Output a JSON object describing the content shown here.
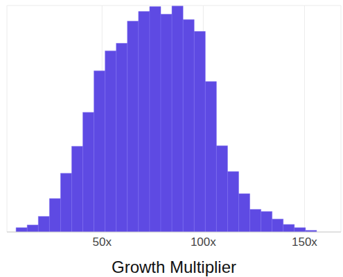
{
  "chart_data": {
    "type": "histogram",
    "x_label": "Growth Multiplier",
    "bins": [
      7.5,
      13,
      18.5,
      24,
      29.5,
      35,
      40.5,
      46,
      51.5,
      57,
      62.5,
      68,
      73.5,
      79,
      84.5,
      90,
      95.5,
      101,
      106.5,
      112,
      117.5,
      123,
      128.5,
      134,
      139.5,
      145,
      150.5,
      156
    ],
    "counts": [
      8,
      13,
      29,
      62,
      109,
      159,
      222,
      299,
      336,
      350,
      391,
      409,
      418,
      404,
      419,
      394,
      372,
      279,
      160,
      112,
      71,
      42,
      38,
      24,
      14,
      8,
      3
    ],
    "color": "#5e4ae3",
    "xlim": [
      3,
      168
    ],
    "xticks": [
      {
        "value": 50,
        "label": "50x"
      },
      {
        "value": 100,
        "label": "100x"
      },
      {
        "value": 150,
        "label": "150x"
      }
    ],
    "ylim": [
      0,
      420
    ],
    "yticks": [
      0,
      50,
      100,
      150,
      200,
      250,
      300,
      350,
      400
    ],
    "grid": true,
    "tick_labels": "x"
  }
}
